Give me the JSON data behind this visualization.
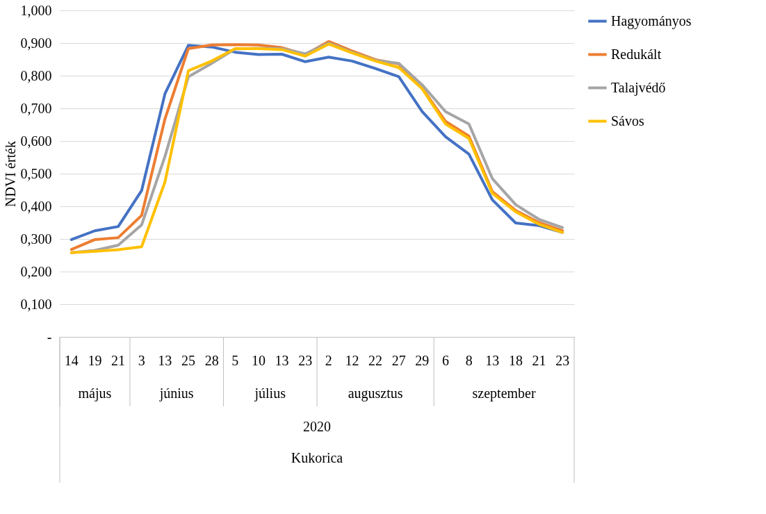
{
  "chart_data": {
    "type": "line",
    "ylabel": "NDVI érték",
    "categories": [
      "14",
      "19",
      "21",
      "3",
      "13",
      "25",
      "28",
      "5",
      "10",
      "13",
      "23",
      "2",
      "12",
      "22",
      "27",
      "29",
      "6",
      "8",
      "13",
      "18",
      "21",
      "23"
    ],
    "series": [
      {
        "name": "Hagyományos",
        "color": "#4472c4",
        "values": [
          0.298,
          0.325,
          0.338,
          0.448,
          0.745,
          0.893,
          0.888,
          0.872,
          0.865,
          0.866,
          0.843,
          0.857,
          0.845,
          0.822,
          0.797,
          0.69,
          0.613,
          0.56,
          0.42,
          0.349,
          0.341,
          0.32
        ]
      },
      {
        "name": "Redukált",
        "color": "#ed7d31",
        "values": [
          0.268,
          0.298,
          0.304,
          0.372,
          0.668,
          0.883,
          0.894,
          0.895,
          0.894,
          0.886,
          0.865,
          0.905,
          0.876,
          0.849,
          0.836,
          0.762,
          0.66,
          0.615,
          0.445,
          0.387,
          0.35,
          0.325
        ]
      },
      {
        "name": "Talajvédő",
        "color": "#a5a5a5",
        "values": [
          0.258,
          0.265,
          0.281,
          0.343,
          0.553,
          0.797,
          0.838,
          0.882,
          0.884,
          0.883,
          0.867,
          0.9,
          0.872,
          0.847,
          0.838,
          0.772,
          0.69,
          0.652,
          0.485,
          0.405,
          0.36,
          0.335
        ]
      },
      {
        "name": "Sávos",
        "color": "#ffc000",
        "values": [
          0.258,
          0.262,
          0.267,
          0.276,
          0.475,
          0.815,
          0.845,
          0.883,
          0.883,
          0.88,
          0.86,
          0.897,
          0.87,
          0.845,
          0.825,
          0.76,
          0.652,
          0.608,
          0.44,
          0.383,
          0.345,
          0.32
        ]
      }
    ],
    "ylim": [
      0,
      1
    ],
    "yticks": [
      {
        "value": 0,
        "label": "-"
      },
      {
        "value": 0.1,
        "label": "0,100"
      },
      {
        "value": 0.2,
        "label": "0,200"
      },
      {
        "value": 0.3,
        "label": "0,300"
      },
      {
        "value": 0.4,
        "label": "0,400"
      },
      {
        "value": 0.5,
        "label": "0,500"
      },
      {
        "value": 0.6,
        "label": "0,600"
      },
      {
        "value": 0.7,
        "label": "0,700"
      },
      {
        "value": 0.8,
        "label": "0,800"
      },
      {
        "value": 0.9,
        "label": "0,900"
      },
      {
        "value": 1,
        "label": "1,000"
      }
    ],
    "grid": "y",
    "legend": "right",
    "line_style": "solid",
    "annotations": [
      "május",
      "június",
      "július",
      "augusztus",
      "szeptember",
      "2020",
      "Kukorica"
    ]
  }
}
